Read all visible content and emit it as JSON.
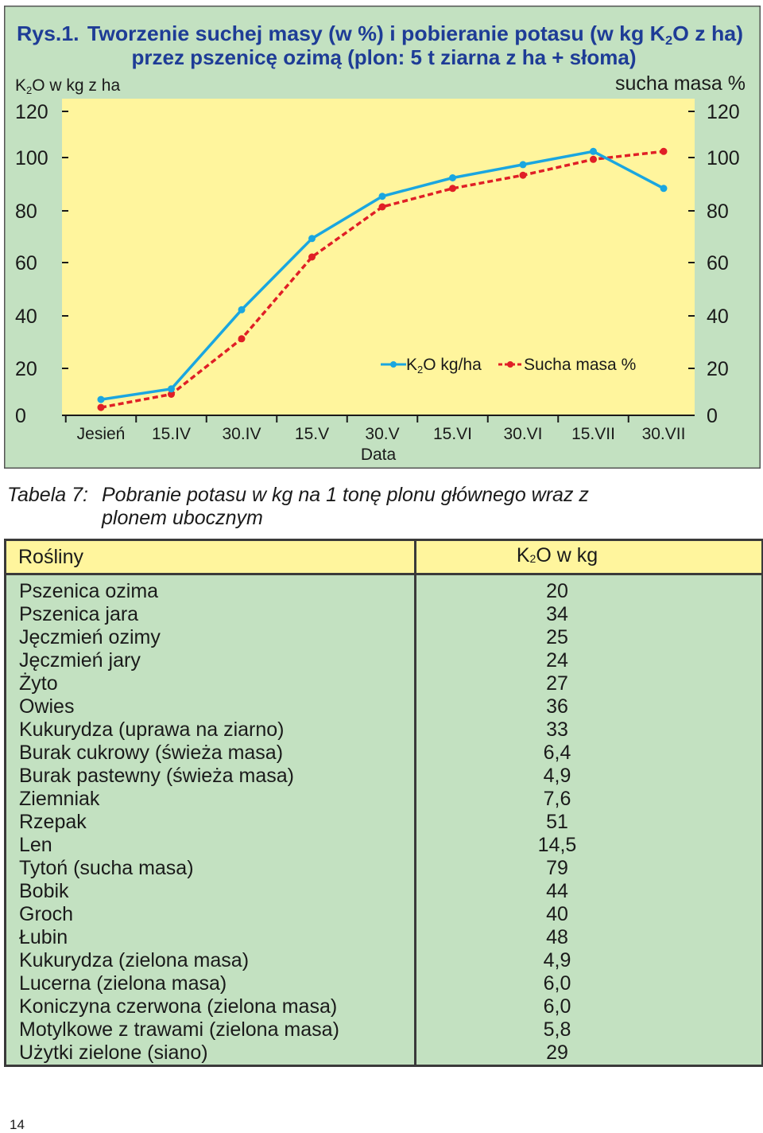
{
  "chart_data": {
    "type": "line",
    "title": {
      "prefix": "Rys.1.",
      "line1_before": "Tworzenie suchej masy (w %) i pobieranie potasu (w kg K",
      "line1_sub": "2",
      "line1_after": "O z ha)",
      "line2": "przez pszenicę ozimą (plon: 5 t ziarna z ha + słoma)"
    },
    "ylabel_left": {
      "before": "K",
      "sub": "2",
      "after": "O w kg z ha"
    },
    "ylabel_right": "sucha masa %",
    "xlabel": "Data",
    "categories": [
      "Jesień",
      "15.IV",
      "30.IV",
      "15.V",
      "30.V",
      "15.VI",
      "30.VI",
      "15.VII",
      "30.VII"
    ],
    "y_ticks": [
      "0",
      "20",
      "40",
      "60",
      "80",
      "100",
      "120"
    ],
    "ylim": [
      0,
      120
    ],
    "grid": false,
    "legend_position": "center-right",
    "series": [
      {
        "name": {
          "before": "K",
          "sub": "2",
          "after": "O kg/ha"
        },
        "color": "#1aa6e0",
        "style": "solid",
        "values": [
          6,
          10,
          40,
          67,
          83,
          90,
          95,
          100,
          86
        ]
      },
      {
        "name": {
          "before": "",
          "sub": "",
          "after": "Sucha masa %"
        },
        "color": "#e01f26",
        "style": "dashed",
        "values": [
          3,
          8,
          29,
          60,
          79,
          86,
          91,
          97,
          100
        ]
      }
    ],
    "colors": {
      "frame_bg": "#c3e1c1",
      "plot_bg": "#fff59d",
      "title": "#1e3c96",
      "text": "#1a1a1a"
    }
  },
  "table": {
    "caption_num": "Tabela 7:",
    "caption_line1": "Pobranie potasu w kg na 1 tonę plonu głównego wraz z",
    "caption_line2": "plonem ubocznym",
    "header_col1": "Rośliny",
    "header_col2": {
      "before": "K",
      "sub": "2",
      "after": "O w kg"
    },
    "rows": [
      {
        "plant": "Pszenica ozima",
        "k2o": "20"
      },
      {
        "plant": "Pszenica jara",
        "k2o": "34"
      },
      {
        "plant": "Jęczmień ozimy",
        "k2o": "25"
      },
      {
        "plant": "Jęczmień jary",
        "k2o": "24"
      },
      {
        "plant": "Żyto",
        "k2o": "27"
      },
      {
        "plant": "Owies",
        "k2o": "36"
      },
      {
        "plant": "Kukurydza (uprawa na ziarno)",
        "k2o": "33"
      },
      {
        "plant": "Burak cukrowy (świeża masa)",
        "k2o": "6,4"
      },
      {
        "plant": "Burak pastewny (świeża masa)",
        "k2o": "4,9"
      },
      {
        "plant": "Ziemniak",
        "k2o": "7,6"
      },
      {
        "plant": "Rzepak",
        "k2o": "51"
      },
      {
        "plant": "Len",
        "k2o": "14,5"
      },
      {
        "plant": "Tytoń (sucha masa)",
        "k2o": "79"
      },
      {
        "plant": "Bobik",
        "k2o": "44"
      },
      {
        "plant": "Groch",
        "k2o": "40"
      },
      {
        "plant": "Łubin",
        "k2o": "48"
      },
      {
        "plant": "Kukurydza (zielona masa)",
        "k2o": "4,9"
      },
      {
        "plant": "Lucerna (zielona masa)",
        "k2o": "6,0"
      },
      {
        "plant": "Koniczyna czerwona (zielona masa)",
        "k2o": "6,0"
      },
      {
        "plant": "Motylkowe z trawami (zielona masa)",
        "k2o": "5,8"
      },
      {
        "plant": "Użytki zielone (siano)",
        "k2o": "29"
      }
    ]
  },
  "page_number": "14"
}
